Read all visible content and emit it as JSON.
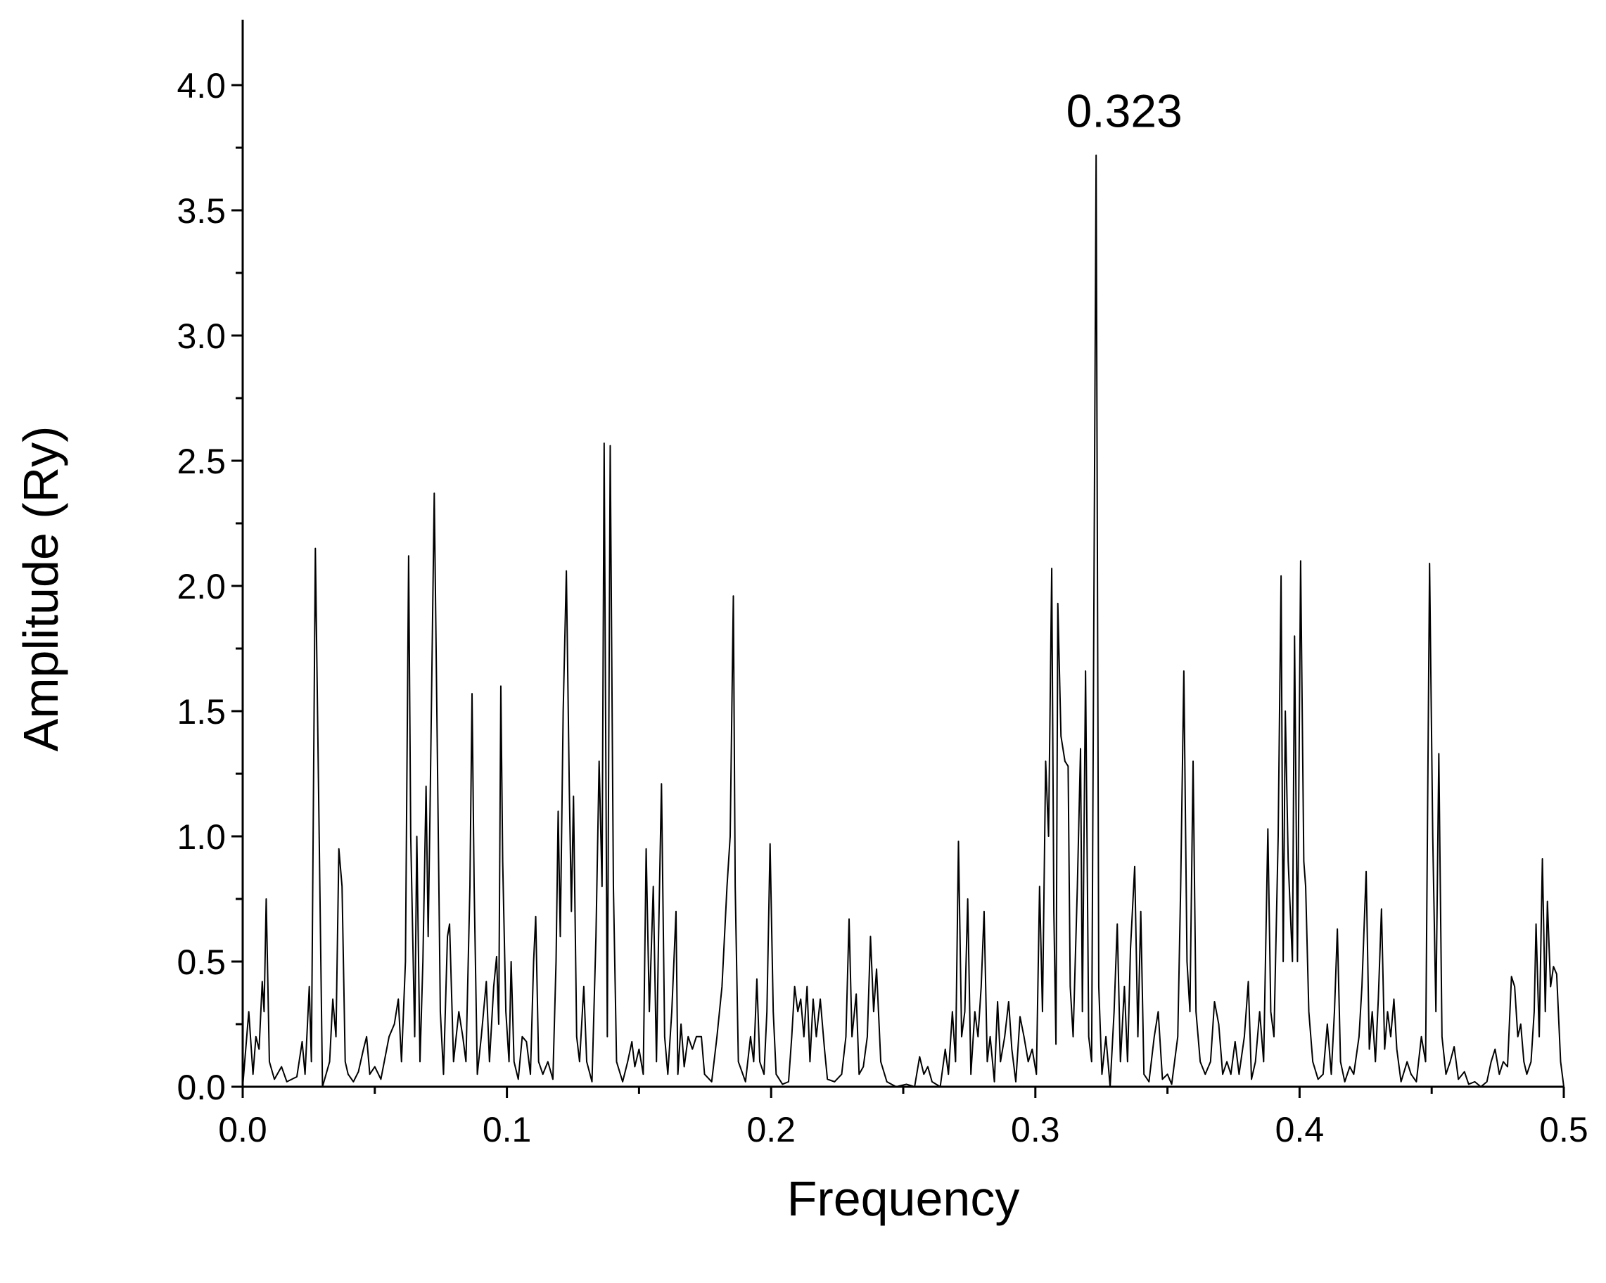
{
  "chart_data": {
    "type": "line",
    "xlabel": "Frequency",
    "ylabel": "Amplitude (Ry)",
    "annotations": [
      {
        "text": "0.323",
        "x": 0.323
      }
    ],
    "color": "#000000",
    "xlim": [
      0,
      0.5
    ],
    "ylim": [
      0,
      4.25
    ],
    "xticks": [
      {
        "value": 0,
        "label": "0.0"
      },
      0.1,
      0.2,
      0.3,
      0.4,
      0.5
    ],
    "xminorticks": [
      0.05,
      0.15,
      0.25,
      0.35,
      0.45
    ],
    "yticks": [
      {
        "value": 0,
        "label": "0.0"
      },
      0.5,
      {
        "value": 1,
        "label": "1.0"
      },
      1.5,
      {
        "value": 2,
        "label": "2.0"
      },
      2.5,
      {
        "value": 3,
        "label": "3.0"
      },
      3.5,
      {
        "value": 4,
        "label": "4.0"
      }
    ],
    "yminorticks": [
      0.25,
      0.75,
      1.25,
      1.75,
      2.25,
      2.75,
      3.25,
      3.75
    ],
    "x": [
      0,
      0.0023,
      0.0039,
      0.005,
      0.0062,
      0.0074,
      0.0081,
      0.0089,
      0.0101,
      0.012,
      0.0147,
      0.0167,
      0.0205,
      0.0225,
      0.0236,
      0.0252,
      0.026,
      0.0275,
      0.0287,
      0.0302,
      0.0329,
      0.0341,
      0.0353,
      0.0364,
      0.0376,
      0.0388,
      0.0399,
      0.0419,
      0.0438,
      0.0457,
      0.0469,
      0.0481,
      0.05,
      0.0523,
      0.0554,
      0.0574,
      0.0589,
      0.0601,
      0.0616,
      0.0628,
      0.0636,
      0.0651,
      0.0659,
      0.0671,
      0.0682,
      0.0694,
      0.0702,
      0.0709,
      0.0725,
      0.0736,
      0.0748,
      0.076,
      0.0775,
      0.0783,
      0.0798,
      0.0818,
      0.0833,
      0.0845,
      0.086,
      0.0868,
      0.0876,
      0.0888,
      0.0903,
      0.0922,
      0.0934,
      0.095,
      0.0961,
      0.0969,
      0.0977,
      0.0984,
      0.0996,
      0.1008,
      0.1016,
      0.1027,
      0.1043,
      0.1058,
      0.1074,
      0.1089,
      0.1101,
      0.1109,
      0.112,
      0.1136,
      0.1155,
      0.1174,
      0.1186,
      0.1194,
      0.1202,
      0.1213,
      0.1225,
      0.1236,
      0.1244,
      0.1252,
      0.1264,
      0.1275,
      0.1291,
      0.1302,
      0.1322,
      0.1337,
      0.1349,
      0.136,
      0.1368,
      0.138,
      0.1391,
      0.1403,
      0.1415,
      0.1438,
      0.1457,
      0.1473,
      0.1484,
      0.15,
      0.1516,
      0.1527,
      0.1539,
      0.1554,
      0.1566,
      0.1574,
      0.1585,
      0.1597,
      0.1609,
      0.1624,
      0.164,
      0.1647,
      0.1659,
      0.1671,
      0.1686,
      0.1702,
      0.1717,
      0.1736,
      0.1748,
      0.1775,
      0.1795,
      0.1814,
      0.1833,
      0.1845,
      0.1857,
      0.1864,
      0.1876,
      0.1903,
      0.1922,
      0.1934,
      0.1946,
      0.1957,
      0.1973,
      0.1984,
      0.1996,
      0.2008,
      0.2019,
      0.2043,
      0.2066,
      0.2078,
      0.2089,
      0.2101,
      0.2112,
      0.2124,
      0.2136,
      0.2147,
      0.2159,
      0.2171,
      0.2186,
      0.2202,
      0.2213,
      0.224,
      0.2267,
      0.2283,
      0.2295,
      0.2306,
      0.2322,
      0.2333,
      0.2349,
      0.2364,
      0.2376,
      0.2388,
      0.2399,
      0.2415,
      0.2438,
      0.2473,
      0.2512,
      0.2543,
      0.2562,
      0.2578,
      0.2593,
      0.2609,
      0.264,
      0.2659,
      0.2671,
      0.2686,
      0.2698,
      0.2709,
      0.2721,
      0.2733,
      0.2744,
      0.2756,
      0.2771,
      0.2783,
      0.2795,
      0.2806,
      0.2818,
      0.2829,
      0.2845,
      0.2857,
      0.2868,
      0.2884,
      0.2899,
      0.2911,
      0.2926,
      0.2942,
      0.2957,
      0.2973,
      0.2988,
      0.3004,
      0.3016,
      0.3027,
      0.3039,
      0.305,
      0.3062,
      0.307,
      0.3078,
      0.3085,
      0.3097,
      0.3112,
      0.3124,
      0.3132,
      0.3143,
      0.3159,
      0.3171,
      0.3178,
      0.319,
      0.3202,
      0.3213,
      0.323,
      0.324,
      0.3252,
      0.3267,
      0.3283,
      0.3298,
      0.331,
      0.3322,
      0.3337,
      0.3349,
      0.336,
      0.3376,
      0.3388,
      0.3399,
      0.3411,
      0.343,
      0.345,
      0.3465,
      0.3481,
      0.35,
      0.3516,
      0.3539,
      0.355,
      0.3562,
      0.3574,
      0.3585,
      0.3597,
      0.3608,
      0.3624,
      0.3643,
      0.3663,
      0.3678,
      0.3694,
      0.3709,
      0.3725,
      0.374,
      0.3756,
      0.3771,
      0.3791,
      0.3806,
      0.3818,
      0.3833,
      0.3849,
      0.3864,
      0.388,
      0.3891,
      0.3903,
      0.3919,
      0.393,
      0.3938,
      0.3946,
      0.3957,
      0.3973,
      0.3981,
      0.3992,
      0.4004,
      0.4016,
      0.4023,
      0.4035,
      0.405,
      0.407,
      0.4089,
      0.4105,
      0.412,
      0.4132,
      0.4143,
      0.4155,
      0.4171,
      0.419,
      0.4205,
      0.4225,
      0.4236,
      0.4252,
      0.4264,
      0.4275,
      0.4287,
      0.4298,
      0.431,
      0.4322,
      0.4333,
      0.4345,
      0.4357,
      0.4368,
      0.4384,
      0.4407,
      0.4422,
      0.4442,
      0.4461,
      0.4477,
      0.4492,
      0.4504,
      0.4516,
      0.4527,
      0.4539,
      0.4554,
      0.457,
      0.4585,
      0.4601,
      0.4624,
      0.464,
      0.4663,
      0.4686,
      0.4709,
      0.4725,
      0.474,
      0.4756,
      0.4771,
      0.4787,
      0.4802,
      0.4814,
      0.4826,
      0.4837,
      0.4849,
      0.486,
      0.4876,
      0.4888,
      0.4895,
      0.4907,
      0.4919,
      0.493,
      0.4938,
      0.495,
      0.4961,
      0.4973,
      0.4988,
      0.5
    ],
    "values": [
      0.0,
      0.3,
      0.05,
      0.2,
      0.15,
      0.42,
      0.3,
      0.75,
      0.1,
      0.03,
      0.08,
      0.02,
      0.04,
      0.18,
      0.05,
      0.4,
      0.1,
      2.15,
      1.2,
      0.0,
      0.1,
      0.35,
      0.2,
      0.95,
      0.8,
      0.1,
      0.05,
      0.02,
      0.06,
      0.15,
      0.2,
      0.05,
      0.08,
      0.03,
      0.2,
      0.25,
      0.35,
      0.1,
      0.5,
      2.12,
      1.0,
      0.2,
      1.0,
      0.1,
      0.5,
      1.2,
      0.6,
      1.1,
      2.37,
      1.4,
      0.3,
      0.05,
      0.6,
      0.65,
      0.1,
      0.3,
      0.2,
      0.1,
      0.8,
      1.57,
      0.8,
      0.05,
      0.2,
      0.42,
      0.1,
      0.4,
      0.52,
      0.25,
      1.6,
      0.9,
      0.3,
      0.1,
      0.5,
      0.1,
      0.03,
      0.2,
      0.18,
      0.05,
      0.5,
      0.68,
      0.1,
      0.05,
      0.1,
      0.03,
      0.5,
      1.1,
      0.6,
      1.5,
      2.06,
      1.2,
      0.7,
      1.16,
      0.2,
      0.1,
      0.4,
      0.1,
      0.02,
      0.6,
      1.3,
      0.8,
      2.57,
      0.2,
      2.56,
      0.8,
      0.1,
      0.02,
      0.1,
      0.18,
      0.08,
      0.15,
      0.05,
      0.95,
      0.3,
      0.8,
      0.1,
      0.6,
      1.21,
      0.2,
      0.05,
      0.3,
      0.7,
      0.05,
      0.25,
      0.08,
      0.2,
      0.15,
      0.2,
      0.2,
      0.05,
      0.02,
      0.2,
      0.4,
      0.8,
      1.0,
      1.96,
      0.8,
      0.1,
      0.02,
      0.2,
      0.1,
      0.43,
      0.1,
      0.05,
      0.3,
      0.97,
      0.3,
      0.05,
      0.01,
      0.02,
      0.2,
      0.4,
      0.3,
      0.35,
      0.2,
      0.4,
      0.1,
      0.35,
      0.2,
      0.35,
      0.15,
      0.03,
      0.02,
      0.05,
      0.2,
      0.67,
      0.2,
      0.37,
      0.05,
      0.08,
      0.2,
      0.6,
      0.3,
      0.47,
      0.1,
      0.02,
      0.0,
      0.01,
      0.0,
      0.12,
      0.05,
      0.08,
      0.02,
      0.0,
      0.15,
      0.05,
      0.3,
      0.1,
      0.98,
      0.2,
      0.3,
      0.75,
      0.05,
      0.3,
      0.2,
      0.4,
      0.7,
      0.1,
      0.2,
      0.02,
      0.34,
      0.1,
      0.2,
      0.34,
      0.15,
      0.02,
      0.28,
      0.2,
      0.1,
      0.15,
      0.05,
      0.8,
      0.3,
      1.3,
      1.0,
      2.07,
      0.7,
      0.17,
      1.93,
      1.4,
      1.3,
      1.28,
      0.4,
      0.2,
      0.8,
      1.35,
      0.3,
      1.66,
      0.2,
      0.1,
      3.72,
      0.4,
      0.05,
      0.2,
      0.0,
      0.3,
      0.65,
      0.1,
      0.4,
      0.1,
      0.55,
      0.88,
      0.2,
      0.7,
      0.05,
      0.02,
      0.2,
      0.3,
      0.03,
      0.05,
      0.01,
      0.2,
      0.8,
      1.66,
      0.5,
      0.3,
      1.3,
      0.3,
      0.1,
      0.05,
      0.1,
      0.34,
      0.25,
      0.05,
      0.1,
      0.05,
      0.18,
      0.05,
      0.2,
      0.42,
      0.03,
      0.1,
      0.3,
      0.1,
      1.03,
      0.3,
      0.2,
      1.0,
      2.04,
      0.5,
      1.5,
      0.9,
      0.5,
      1.8,
      0.5,
      2.1,
      0.9,
      0.8,
      0.3,
      0.1,
      0.03,
      0.05,
      0.25,
      0.05,
      0.3,
      0.63,
      0.1,
      0.02,
      0.08,
      0.05,
      0.2,
      0.4,
      0.86,
      0.15,
      0.3,
      0.1,
      0.35,
      0.71,
      0.15,
      0.3,
      0.2,
      0.35,
      0.15,
      0.02,
      0.1,
      0.05,
      0.02,
      0.2,
      0.1,
      2.09,
      1.0,
      0.3,
      1.33,
      0.2,
      0.05,
      0.1,
      0.16,
      0.03,
      0.06,
      0.01,
      0.02,
      0.0,
      0.02,
      0.1,
      0.15,
      0.05,
      0.1,
      0.08,
      0.44,
      0.4,
      0.2,
      0.25,
      0.1,
      0.05,
      0.1,
      0.3,
      0.65,
      0.2,
      0.91,
      0.3,
      0.74,
      0.4,
      0.48,
      0.45,
      0.1,
      0.0
    ]
  }
}
